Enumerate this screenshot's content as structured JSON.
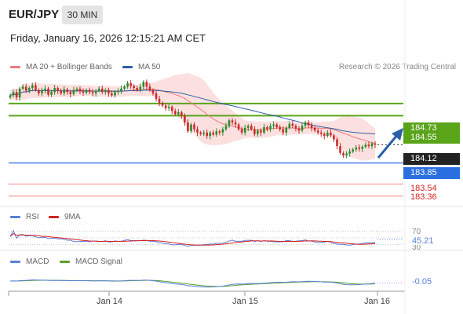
{
  "header": {
    "symbol": "EUR/JPY",
    "timeframe": "30 MIN",
    "datetime": "Friday, January 16, 2026 12:15:21 AM CET",
    "copyright": "Research © 2026 Trading Central"
  },
  "legend": {
    "price": [
      {
        "label": "MA 20 + Bollinger Bands",
        "color": "#f07a7a"
      },
      {
        "label": "MA 50",
        "color": "#2f5ea8"
      }
    ],
    "rsi": [
      {
        "label": "RSI",
        "color": "#5b7fd6"
      },
      {
        "label": "9MA",
        "color": "#d42020"
      }
    ],
    "macd": [
      {
        "label": "MACD",
        "color": "#5b7fd6"
      },
      {
        "label": "MACD Signal",
        "color": "#5aa02c"
      }
    ]
  },
  "price_tags": [
    {
      "value": "184.73",
      "bg": "#5aa41a",
      "fg": "#ffffff",
      "kind": "resistance"
    },
    {
      "value": "184.55",
      "bg": "#5aa41a",
      "fg": "#ffffff",
      "kind": "resistance"
    },
    {
      "value": "184.12",
      "bg": "#222222",
      "fg": "#ffffff",
      "kind": "last"
    },
    {
      "value": "183.85",
      "bg": "#2a6fe0",
      "fg": "#ffffff",
      "kind": "pivot"
    },
    {
      "value": "183.54",
      "bg": "",
      "fg": "#d22222",
      "kind": "support"
    },
    {
      "value": "183.36",
      "bg": "",
      "fg": "#d22222",
      "kind": "support"
    }
  ],
  "rsi_labels": {
    "level_top": "70",
    "value": "45.21",
    "level_bottom": "30"
  },
  "macd_labels": {
    "value": "-0.05"
  },
  "x_axis": {
    "ticks": [
      "Jan 14",
      "Jan 15",
      "Jan 16"
    ]
  },
  "colors": {
    "up_candle": "#2a8a2a",
    "down_candle": "#cc2a2a",
    "bb_fill": "#fbd5d5",
    "ma20": "#f07a7a",
    "ma50": "#2f5ea8",
    "resistance": "#5aa41a",
    "pivot": "#2a6fe0",
    "support": "#f08a8a",
    "arrow": "#2a5fa8"
  },
  "chart_data": [
    {
      "type": "candlestick",
      "title": "EUR/JPY 30 MIN",
      "x_ticks": [
        "Jan 14",
        "Jan 15",
        "Jan 16"
      ],
      "ylim": [
        183.3,
        185.1
      ],
      "close": [
        184.85,
        184.9,
        184.82,
        184.95,
        184.98,
        184.92,
        184.96,
        185.0,
        184.93,
        184.88,
        184.93,
        184.95,
        184.86,
        184.9,
        184.96,
        184.92,
        184.88,
        184.94,
        184.9,
        184.87,
        184.93,
        184.95,
        184.91,
        184.89,
        184.93,
        184.9,
        184.88,
        184.92,
        184.95,
        184.9,
        184.93,
        184.88,
        184.85,
        184.9,
        184.92,
        184.95,
        184.98,
        185.03,
        184.99,
        184.96,
        184.93,
        184.98,
        185.05,
        184.98,
        184.93,
        184.88,
        184.8,
        184.74,
        184.7,
        184.66,
        184.68,
        184.62,
        184.57,
        184.6,
        184.55,
        184.45,
        184.32,
        184.42,
        184.35,
        184.3,
        184.28,
        184.3,
        184.25,
        184.3,
        184.27,
        184.32,
        184.3,
        184.35,
        184.4,
        184.48,
        184.45,
        184.42,
        184.35,
        184.3,
        184.37,
        184.4,
        184.35,
        184.28,
        184.33,
        184.3,
        184.38,
        184.35,
        184.4,
        184.42,
        184.38,
        184.35,
        184.3,
        184.37,
        184.43,
        184.4,
        184.36,
        184.33,
        184.4,
        184.45,
        184.41,
        184.37,
        184.33,
        184.3,
        184.28,
        184.25,
        184.3,
        184.26,
        184.2,
        184.1,
        184.0,
        183.96,
        183.99,
        184.02,
        184.05,
        184.08,
        184.06,
        184.09,
        184.12,
        184.1,
        184.14,
        184.12
      ],
      "ma20_last": 184.2,
      "ma50_last": 184.28,
      "levels": {
        "resistance": [
          184.73,
          184.55
        ],
        "last": 184.12,
        "pivot": 183.85,
        "support": [
          183.54,
          183.36
        ]
      }
    },
    {
      "type": "line",
      "title": "RSI",
      "series": [
        {
          "name": "RSI"
        },
        {
          "name": "9MA"
        }
      ],
      "levels": [
        70,
        30
      ],
      "last_value": 45.21
    },
    {
      "type": "line",
      "title": "MACD",
      "series": [
        {
          "name": "MACD"
        },
        {
          "name": "MACD Signal"
        }
      ],
      "last_value": -0.05
    }
  ]
}
